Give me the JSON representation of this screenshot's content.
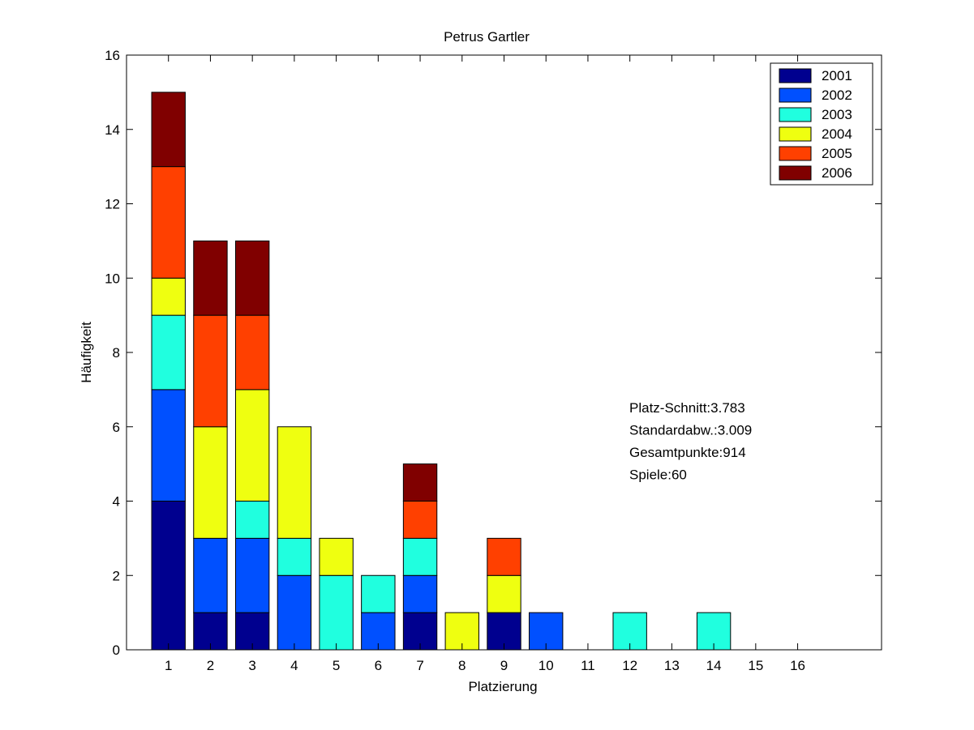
{
  "chart_data": {
    "type": "bar",
    "stacked": true,
    "title": "Petrus Gartler",
    "xlabel": "Platzierung",
    "ylabel": "Häufigkeit",
    "categories": [
      "1",
      "2",
      "3",
      "4",
      "5",
      "6",
      "7",
      "8",
      "9",
      "10",
      "11",
      "12",
      "13",
      "14",
      "15",
      "16"
    ],
    "xlim": [
      0,
      18
    ],
    "ylim": [
      0,
      16
    ],
    "yticks": [
      0,
      2,
      4,
      6,
      8,
      10,
      12,
      14,
      16
    ],
    "grid": false,
    "legend_position": "top-right",
    "series": [
      {
        "name": "2001",
        "color": "#00008F",
        "values": [
          4,
          1,
          1,
          0,
          0,
          0,
          1,
          0,
          1,
          0,
          0,
          0,
          0,
          0,
          0,
          0
        ]
      },
      {
        "name": "2002",
        "color": "#0050FF",
        "values": [
          3,
          2,
          2,
          2,
          0,
          1,
          1,
          0,
          0,
          1,
          0,
          0,
          0,
          0,
          0,
          0
        ]
      },
      {
        "name": "2003",
        "color": "#20FFDF",
        "values": [
          2,
          0,
          1,
          1,
          2,
          1,
          1,
          0,
          0,
          0,
          0,
          1,
          0,
          1,
          0,
          0
        ]
      },
      {
        "name": "2004",
        "color": "#EFFF10",
        "values": [
          1,
          3,
          3,
          3,
          1,
          0,
          0,
          1,
          1,
          0,
          0,
          0,
          0,
          0,
          0,
          0
        ]
      },
      {
        "name": "2005",
        "color": "#FF4000",
        "values": [
          3,
          3,
          2,
          0,
          0,
          0,
          1,
          0,
          1,
          0,
          0,
          0,
          0,
          0,
          0,
          0
        ]
      },
      {
        "name": "2006",
        "color": "#800000",
        "values": [
          2,
          2,
          2,
          0,
          0,
          0,
          1,
          0,
          0,
          0,
          0,
          0,
          0,
          0,
          0,
          0
        ]
      }
    ],
    "annotations": [
      "Platz-Schnitt:3.783",
      "Standardabw.:3.009",
      "Gesamtpunkte:914",
      "Spiele:60"
    ]
  }
}
